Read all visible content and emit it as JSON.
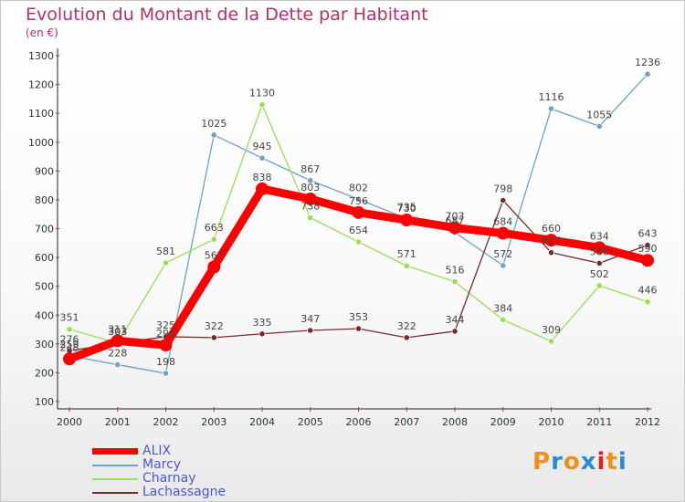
{
  "chart_data": {
    "type": "line",
    "title": "Evolution du Montant de la Dette par Habitant",
    "ylabel": "(en €)",
    "xlabel": "",
    "ylim": [
      100,
      1300
    ],
    "yticks": [
      100,
      200,
      300,
      400,
      500,
      600,
      700,
      800,
      900,
      1000,
      1100,
      1200,
      1300
    ],
    "categories": [
      "2000",
      "2001",
      "2002",
      "2003",
      "2004",
      "2005",
      "2006",
      "2007",
      "2008",
      "2009",
      "2010",
      "2011",
      "2012"
    ],
    "grid": false,
    "legend_position": "bottom-left",
    "series": [
      {
        "name": "ALIX",
        "color": "#ff0000",
        "values": [
          248,
          311,
          296,
          567,
          838,
          803,
          756,
          730,
          703,
          684,
          660,
          634,
          590
        ]
      },
      {
        "name": "Marcy",
        "color": "#6ea0c8",
        "values": [
          259,
          228,
          198,
          1025,
          945,
          867,
          802,
          735,
          687,
          572,
          1116,
          1055,
          1236
        ]
      },
      {
        "name": "Charnay",
        "color": "#99dd55",
        "values": [
          351,
          303,
          581,
          663,
          1130,
          738,
          654,
          571,
          516,
          384,
          309,
          502,
          446
        ]
      },
      {
        "name": "Lachassagne",
        "color": "#7a2a2a",
        "values": [
          276,
          303,
          325,
          322,
          335,
          347,
          353,
          322,
          344,
          798,
          617,
          580,
          643
        ]
      }
    ]
  },
  "logo": {
    "text": "Proxiti",
    "letters": [
      "P",
      "r",
      "o",
      "x",
      "i",
      "t",
      "i"
    ],
    "colors": [
      "#f0901a",
      "#2a8ad0",
      "#f0901a",
      "#2a8ad0",
      "#e0201a",
      "#f0901a",
      "#2a8ad0"
    ]
  }
}
